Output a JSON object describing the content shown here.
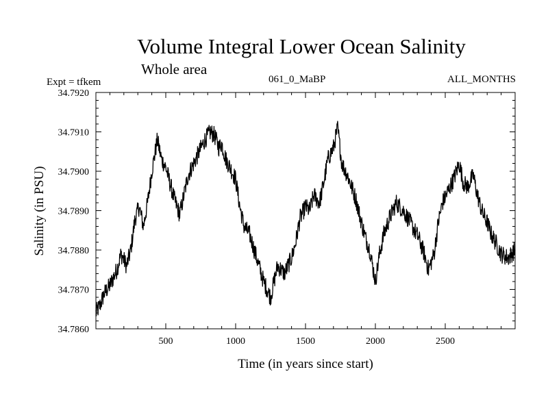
{
  "chart_data": {
    "type": "line",
    "title": "Volume Integral Lower Ocean Salinity",
    "subtitle": "Whole area",
    "annotations": {
      "expt": "Expt = tfkem",
      "run": "061_0_MaBP",
      "months": "ALL_MONTHS"
    },
    "xlabel": "Time (in years since start)",
    "ylabel": "Salinity (in PSU)",
    "xlim": [
      0,
      3000
    ],
    "ylim": [
      34.786,
      34.792
    ],
    "x_ticks": [
      500,
      1000,
      1500,
      2000,
      2500
    ],
    "x_tick_labels": [
      "500",
      "1000",
      "1500",
      "2000",
      "2500"
    ],
    "y_ticks": [
      34.786,
      34.787,
      34.788,
      34.789,
      34.79,
      34.791,
      34.792
    ],
    "y_tick_labels": [
      "34.7860",
      "34.7870",
      "34.7880",
      "34.7890",
      "34.7900",
      "34.7910",
      "34.7920"
    ],
    "grid": false,
    "line_color": "#000000",
    "series": [
      {
        "x": [
          0,
          30,
          60,
          100,
          150,
          180,
          220,
          250,
          280,
          310,
          340,
          370,
          400,
          430,
          440,
          470,
          500,
          530,
          560,
          600,
          630,
          660,
          700,
          740,
          780,
          820,
          850,
          880,
          900,
          930,
          960,
          1000,
          1030,
          1060,
          1100,
          1150,
          1200,
          1250,
          1300,
          1350,
          1400,
          1430,
          1460,
          1500,
          1530,
          1560,
          1600,
          1630,
          1660,
          1700,
          1730,
          1760,
          1800,
          1830,
          1860,
          1900,
          1930,
          1960,
          2000,
          2030,
          2060,
          2100,
          2150,
          2200,
          2250,
          2280,
          2310,
          2350,
          2380,
          2420,
          2450,
          2480,
          2520,
          2560,
          2600,
          2630,
          2660,
          2700,
          2730,
          2760,
          2800,
          2830,
          2860,
          2900,
          2950,
          3000
        ],
        "y": [
          34.7864,
          34.7866,
          34.7869,
          34.7871,
          34.7875,
          34.7879,
          34.7876,
          34.788,
          34.7888,
          34.7891,
          34.7886,
          34.7892,
          34.79,
          34.7906,
          34.7908,
          34.7903,
          34.7901,
          34.7897,
          34.7893,
          34.7889,
          34.7894,
          34.7899,
          34.7902,
          34.7905,
          34.7908,
          34.791,
          34.7909,
          34.7906,
          34.7907,
          34.7903,
          34.7901,
          34.7898,
          34.7891,
          34.7886,
          34.7884,
          34.7878,
          34.7872,
          34.7868,
          34.7876,
          34.7874,
          34.7878,
          34.7882,
          34.7888,
          34.7891,
          34.789,
          34.7894,
          34.7892,
          34.7897,
          34.7903,
          34.7906,
          34.7911,
          34.7902,
          34.7899,
          34.7896,
          34.7893,
          34.7887,
          34.7883,
          34.788,
          34.7872,
          34.7879,
          34.7884,
          34.7888,
          34.7892,
          34.789,
          34.7887,
          34.7885,
          34.7883,
          34.7879,
          34.7875,
          34.7879,
          34.7887,
          34.7892,
          34.7895,
          34.7898,
          34.7902,
          34.7897,
          34.7896,
          34.7899,
          34.7894,
          34.789,
          34.7887,
          34.7884,
          34.7882,
          34.7879,
          34.7878,
          34.788
        ]
      }
    ]
  }
}
